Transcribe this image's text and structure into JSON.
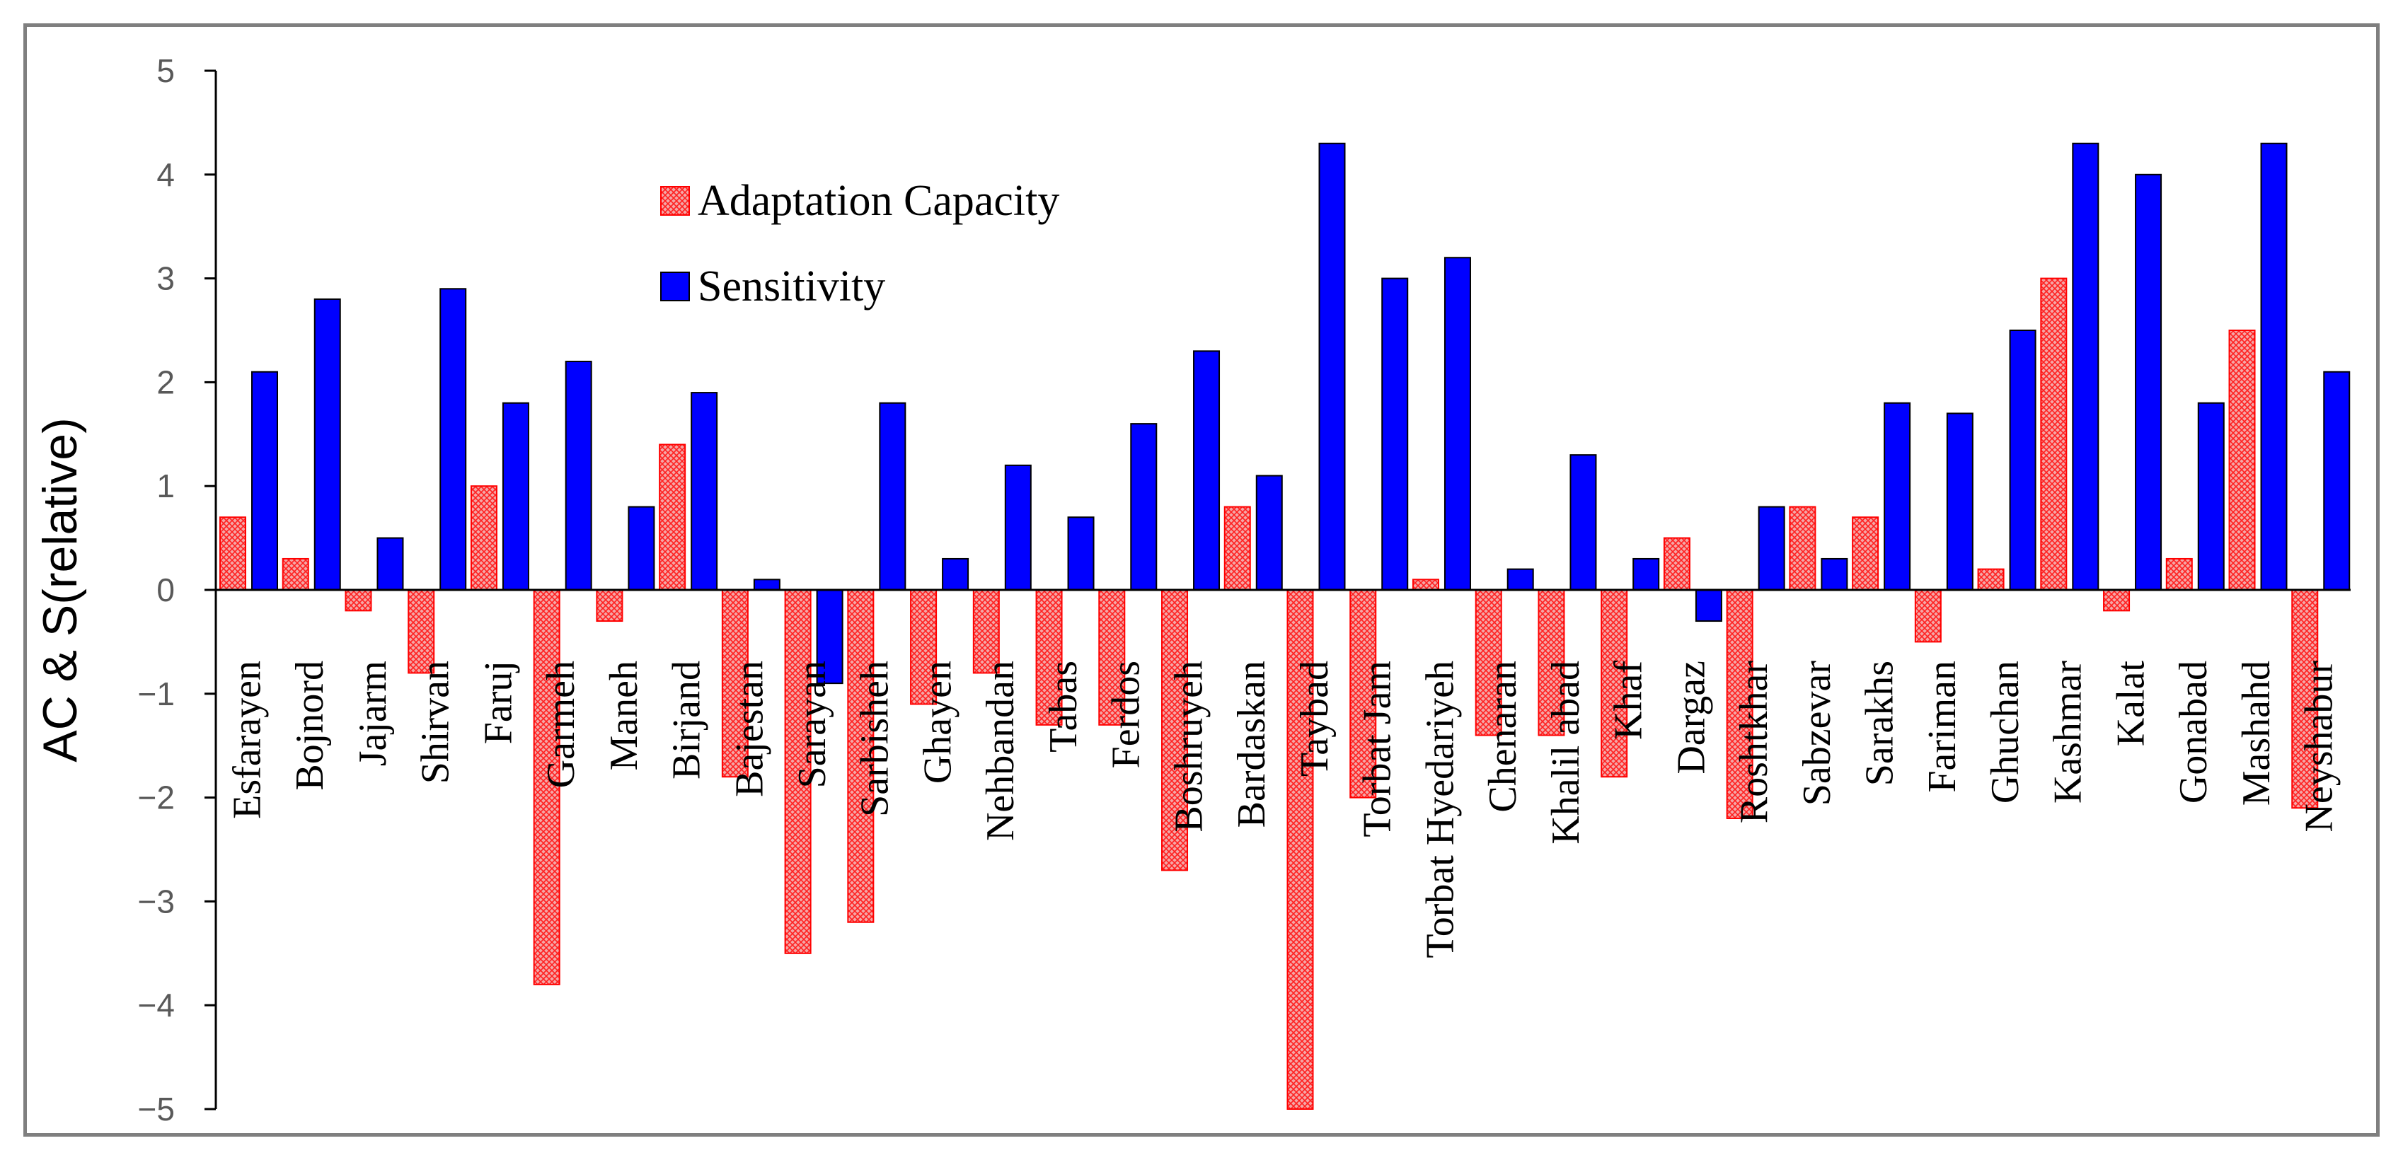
{
  "chart_data": {
    "type": "bar",
    "title": "",
    "xlabel": "",
    "ylabel": "AC & S(relative)",
    "ylim": [
      -5,
      5
    ],
    "yticks": [
      5,
      4,
      3,
      2,
      1,
      0,
      -1,
      -2,
      -3,
      -4,
      -5
    ],
    "ytick_labels": [
      "5",
      "4",
      "3",
      "2",
      "1",
      "0",
      "−1",
      "−2",
      "−3",
      "−4",
      "−5"
    ],
    "legend_position": "top-left",
    "categories": [
      "Esfarayen",
      "Bojnord",
      "Jajarm",
      "Shirvan",
      "Faruj",
      "Garmeh",
      "Maneh",
      "Birjand",
      "Bajestan",
      "Sarayan",
      "Sarbisheh",
      "Ghayen",
      "Nehbandan",
      "Tabas",
      "Ferdos",
      "Boshruyeh",
      "Bardaskan",
      "Taybad",
      "Torbat Jam",
      "Torbat Hyedariyeh",
      "Chenaran",
      "Khalil abad",
      "Khaf",
      "Dargaz",
      "Roshtkhar",
      "Sabzevar",
      "Sarakhs",
      "Fariman",
      "Ghuchan",
      "Kashmar",
      "Kalat",
      "Gonabad",
      "Mashahd",
      "Neyshabur"
    ],
    "series": [
      {
        "name": "Adaptation Capacity",
        "color": "#ff0000",
        "fill_color": "#f4a6a6",
        "pattern": "crosshatch",
        "values": [
          0.7,
          0.3,
          -0.2,
          -0.8,
          1.0,
          -3.8,
          -0.3,
          1.4,
          -1.8,
          -3.5,
          -3.2,
          -1.1,
          -0.8,
          -1.3,
          -1.3,
          -2.7,
          0.8,
          -5.0,
          -2.0,
          0.1,
          -1.4,
          -1.4,
          -1.8,
          0.5,
          -2.2,
          0.8,
          0.7,
          -0.5,
          0.2,
          3.0,
          -0.2,
          0.3,
          2.5,
          -2.1
        ]
      },
      {
        "name": "Sensitivity",
        "color": "#0000ff",
        "values": [
          2.1,
          2.8,
          0.5,
          2.9,
          1.8,
          2.2,
          0.8,
          1.9,
          0.1,
          -0.9,
          1.8,
          0.3,
          1.2,
          0.7,
          1.6,
          2.3,
          1.1,
          4.3,
          3.0,
          3.2,
          0.2,
          1.3,
          0.3,
          -0.3,
          0.8,
          0.3,
          1.8,
          1.7,
          2.5,
          4.3,
          4.0,
          1.8,
          4.3,
          2.1
        ]
      }
    ]
  }
}
